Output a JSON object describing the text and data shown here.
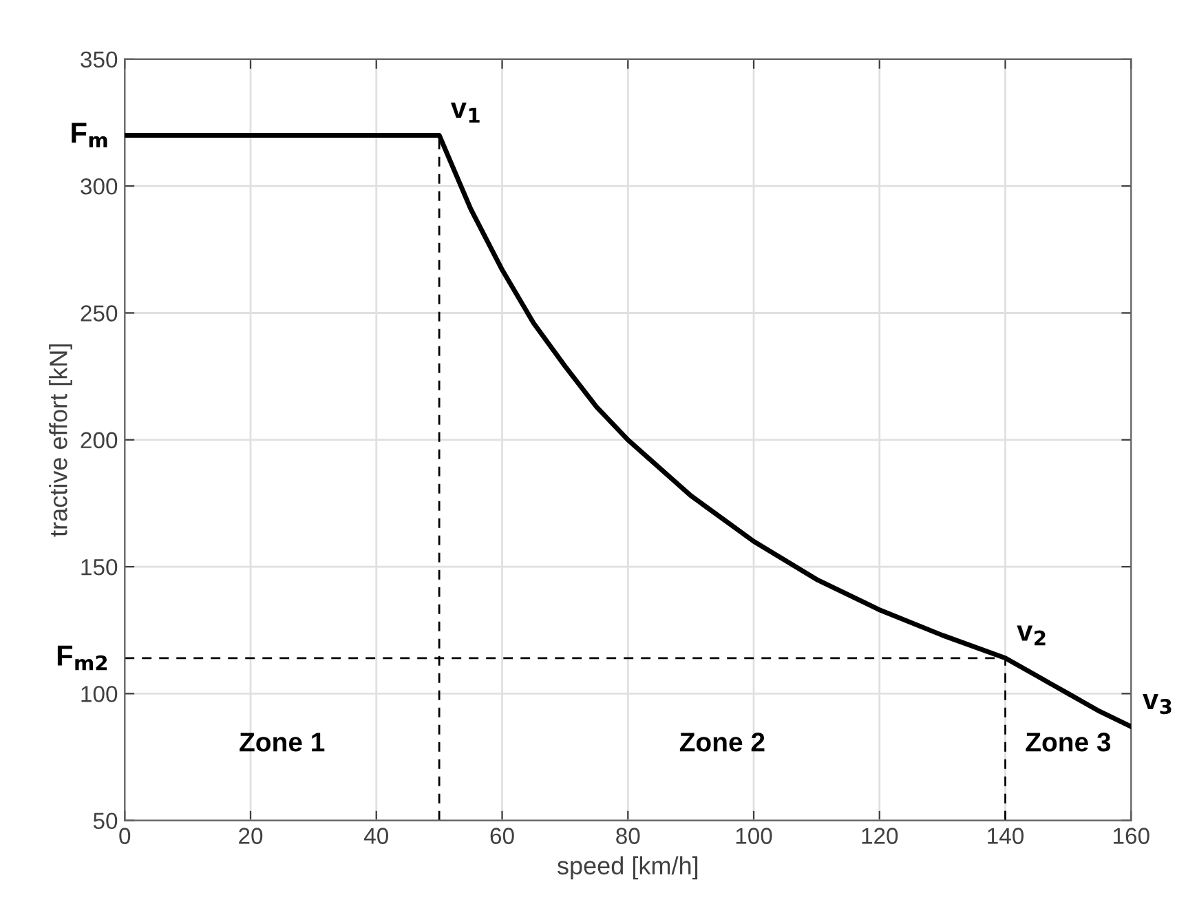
{
  "chart_data": {
    "type": "line",
    "xlabel": "speed [km/h]",
    "ylabel": "tractive effort [kN]",
    "x": [
      0,
      50,
      55,
      60,
      65,
      70,
      75,
      80,
      90,
      100,
      110,
      120,
      130,
      140,
      145,
      150,
      155,
      160
    ],
    "series": [
      {
        "color": "#000000",
        "values": [
          320,
          320,
          291,
          267,
          246,
          229,
          213,
          200,
          178,
          160,
          145,
          133,
          123,
          114,
          107,
          100,
          93,
          87
        ]
      }
    ],
    "xlim": [
      0,
      160
    ],
    "xticks": [
      0,
      20,
      40,
      60,
      80,
      100,
      120,
      140,
      160
    ],
    "ylim": [
      50,
      350
    ],
    "yticks": [
      50,
      100,
      150,
      200,
      250,
      300,
      350
    ],
    "grid": true,
    "marker": "none",
    "line_style": "solid",
    "ref_lines": [
      {
        "axis": "x",
        "value": 50,
        "line_style": "dashed",
        "color": "#000000"
      },
      {
        "axis": "x",
        "value": 140,
        "line_style": "dashed",
        "color": "#000000"
      },
      {
        "axis": "y",
        "value": 114,
        "line_style": "dashed",
        "color": "#000000"
      }
    ],
    "annotations": [
      {
        "text": "F$_{m}$",
        "x": 0,
        "y": 320
      },
      {
        "text": "v$_{1}$",
        "x": 50,
        "y": 320
      },
      {
        "text": "F$_{m2}$",
        "x": 0,
        "y": 114
      },
      {
        "text": "v$_{2}$",
        "x": 140,
        "y": 114
      },
      {
        "text": "v$_{3}$",
        "x": 160,
        "y": 87
      },
      "Zone 1",
      "Zone 2",
      "Zone 3"
    ]
  }
}
